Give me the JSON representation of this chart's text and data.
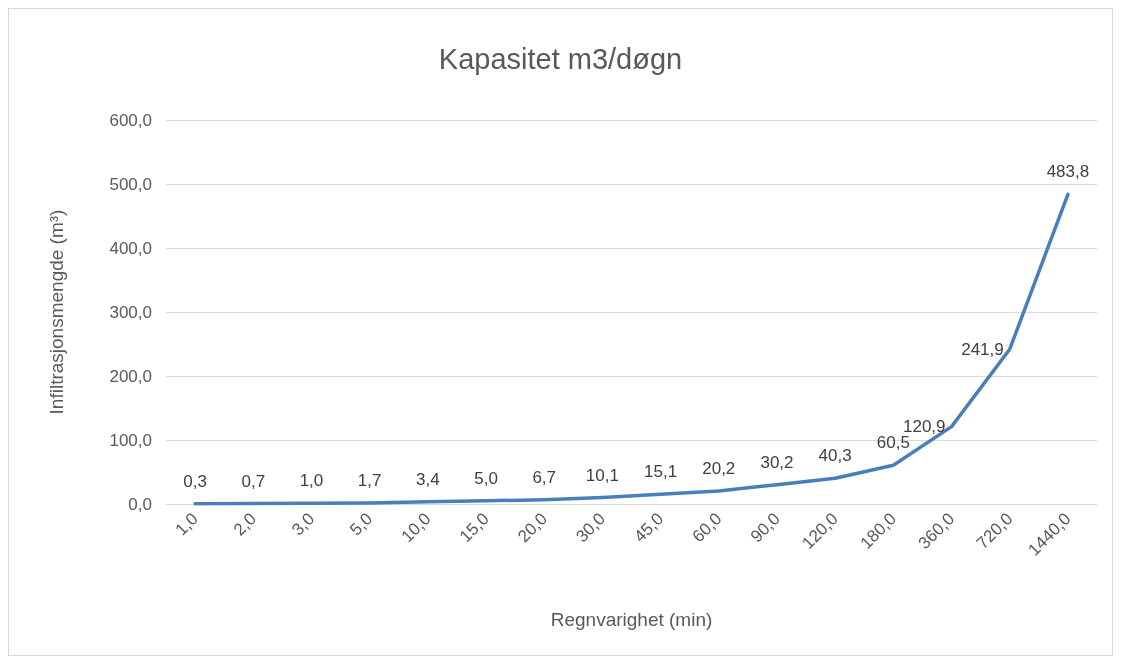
{
  "chart_data": {
    "type": "line",
    "title": "Kapasitet m3/døgn",
    "xlabel": "Regnvarighet (min)",
    "ylabel": "Infiltrasjonsmengde (m³)",
    "categories": [
      "1,0",
      "2,0",
      "3,0",
      "5,0",
      "10,0",
      "15,0",
      "20,0",
      "30,0",
      "45,0",
      "60,0",
      "90,0",
      "120,0",
      "180,0",
      "360,0",
      "720,0",
      "1440,0"
    ],
    "values": [
      0.3,
      0.7,
      1.0,
      1.7,
      3.4,
      5.0,
      6.7,
      10.1,
      15.1,
      20.2,
      30.2,
      40.3,
      60.5,
      120.9,
      241.9,
      483.8
    ],
    "value_labels": [
      "0,3",
      "0,7",
      "1,0",
      "1,7",
      "3,4",
      "5,0",
      "6,7",
      "10,1",
      "15,1",
      "20,2",
      "30,2",
      "40,3",
      "60,5",
      "120,9",
      "241,9",
      "483,8"
    ],
    "color": "#4a7ebb",
    "ylim": [
      0,
      600
    ],
    "yticks": [
      {
        "value": 0,
        "label": "0,0"
      },
      {
        "value": 100,
        "label": "100,0"
      },
      {
        "value": 200,
        "label": "200,0"
      },
      {
        "value": 300,
        "label": "300,0"
      },
      {
        "value": 400,
        "label": "400,0"
      },
      {
        "value": 500,
        "label": "500,0"
      },
      {
        "value": 600,
        "label": "600,0"
      }
    ],
    "grid": "y",
    "marker": "none",
    "line_style": "solid"
  }
}
